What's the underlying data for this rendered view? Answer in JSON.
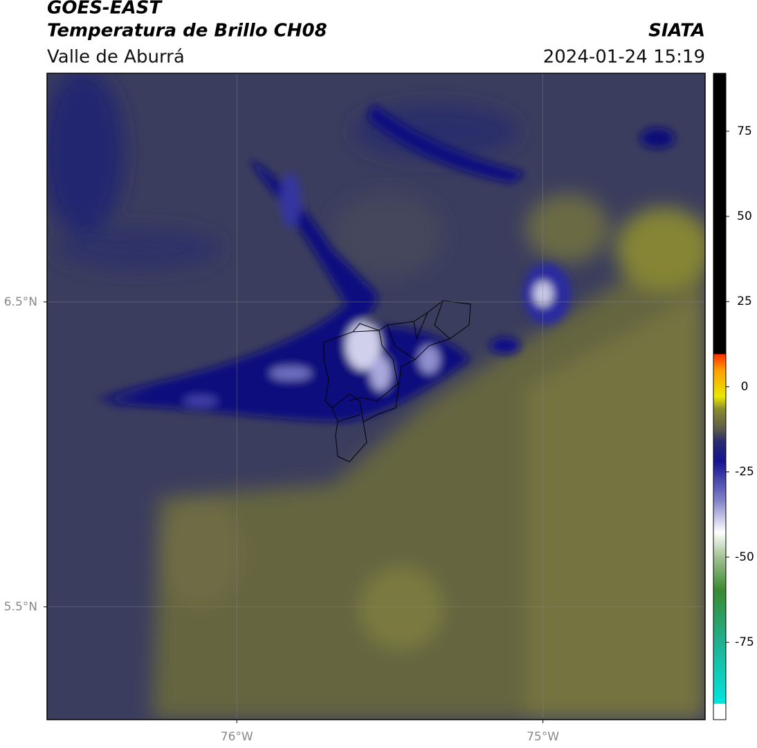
{
  "header": {
    "title": "GOES-EAST",
    "subtitle": "Temperatura de Brillo CH08",
    "region": "Valle de Aburrá",
    "source": "SIATA",
    "datetime": "2024-01-24 15:19"
  },
  "chart_data": {
    "type": "map",
    "grid": true,
    "xlim": [
      -76.62,
      -74.47
    ],
    "ylim": [
      5.13,
      7.25
    ],
    "xticks": [
      {
        "value": -76,
        "label": "76°W"
      },
      {
        "value": -75,
        "label": "75°W"
      }
    ],
    "yticks": [
      {
        "value": 6.5,
        "label": "6.5°N"
      },
      {
        "value": 5.5,
        "label": "5.5°N"
      }
    ],
    "colorbar": {
      "lim": [
        -97.7,
        92
      ],
      "ticks": [
        75,
        50,
        25,
        0,
        -25,
        -50,
        -75
      ]
    }
  }
}
